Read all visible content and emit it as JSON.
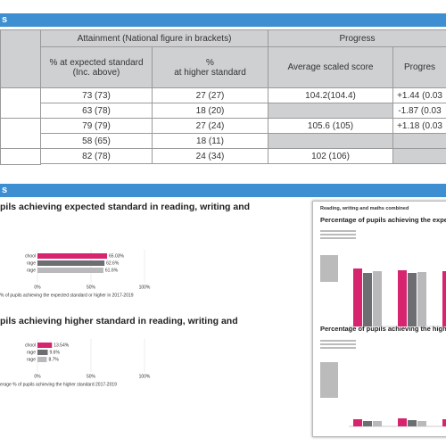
{
  "sections": [
    {
      "title": "s"
    },
    {
      "title": "s"
    }
  ],
  "table": {
    "header": [
      "Attainment (National figure in brackets)",
      "Progress"
    ],
    "subheader": [
      "% at expected standard\n(Inc. above)",
      "%\nat higher standard",
      "Average scaled score",
      "Progres"
    ],
    "rows": [
      [
        "73 (73)",
        "27 (27)",
        "104.2(104.4)",
        "+1.44 (0.03"
      ],
      [
        "63 (78)",
        "18 (20)",
        null,
        "-1.87 (0.03"
      ],
      [
        "79 (79)",
        "27 (24)",
        "105.6 (105)",
        "+1.18 (0.03"
      ],
      [
        "58 (65)",
        "18  (11)",
        null,
        null
      ],
      [
        "82 (78)",
        "24 (34)",
        "102 (106)",
        null
      ]
    ]
  },
  "charts": [
    {
      "type": "bar",
      "title": "pils achieving expected standard in reading, writing and",
      "categories": [
        "chool",
        "rage",
        "rage"
      ],
      "values": [
        65.03,
        62.6,
        61.6
      ],
      "value_labels": [
        "65.03%",
        "62.6%",
        "61.6%"
      ],
      "colors": [
        "#d6246e",
        "#6d6e71",
        "#b9b9bb"
      ],
      "xlim": [
        0,
        100
      ],
      "xticks": [
        {
          "value": 0,
          "label": "0%"
        },
        {
          "value": 50,
          "label": "50%"
        },
        {
          "value": 100,
          "label": "100%"
        }
      ],
      "caption": "% of pupils achieving the expected standard or higher in 2017-2019"
    },
    {
      "type": "bar",
      "title": "pils achieving higher standard in reading, writing and",
      "categories": [
        "chool",
        "rage",
        "rage"
      ],
      "values": [
        13.54,
        9.6,
        8.7
      ],
      "value_labels": [
        "13.54%",
        "9.6%",
        "8.7%"
      ],
      "colors": [
        "#d6246e",
        "#6d6e71",
        "#b9b9bb"
      ],
      "xlim": [
        0,
        100
      ],
      "xticks": [
        {
          "value": 0,
          "label": "0%"
        },
        {
          "value": 50,
          "label": "50%"
        },
        {
          "value": 100,
          "label": "100%"
        }
      ],
      "caption": "erage % of pupils achieving the higher standard 2017-2019"
    }
  ],
  "preview": {
    "heading": "Reading, writing and maths combined",
    "chart_titles": [
      "Percentage of pupils achieving the expected s",
      "Percentage of pupils achieving the higher sta"
    ]
  }
}
